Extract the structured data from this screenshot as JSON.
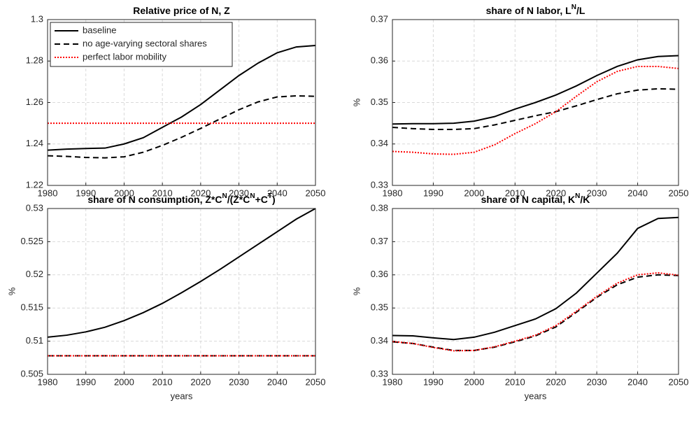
{
  "chart_data": [
    {
      "type": "line",
      "title": [
        "Relative price of N, Z"
      ],
      "x": [
        1980,
        1985,
        1990,
        1995,
        2000,
        2005,
        2010,
        2015,
        2020,
        2025,
        2030,
        2035,
        2040,
        2045,
        2050
      ],
      "xlim": [
        1980,
        2050
      ],
      "xticks": [
        1980,
        1990,
        2000,
        2010,
        2020,
        2030,
        2040,
        2050
      ],
      "ylim": [
        1.22,
        1.3
      ],
      "yticks": [
        1.22,
        1.24,
        1.26,
        1.28,
        1.3
      ],
      "grid": true,
      "legend": "upper left",
      "series": [
        {
          "name": "baseline",
          "color": "#000000",
          "dash": "solid",
          "values": [
            1.237,
            1.2375,
            1.2378,
            1.238,
            1.24,
            1.243,
            1.248,
            1.253,
            1.259,
            1.266,
            1.273,
            1.279,
            1.284,
            1.2868,
            1.2875
          ]
        },
        {
          "name": "no age-varying sectoral shares",
          "color": "#000000",
          "dash": "dashed",
          "values": [
            1.2343,
            1.234,
            1.2335,
            1.2333,
            1.2338,
            1.236,
            1.2393,
            1.2432,
            1.2475,
            1.252,
            1.2565,
            1.2603,
            1.2627,
            1.2632,
            1.263
          ]
        },
        {
          "name": "perfect labor mobility",
          "color": "#ff0000",
          "dash": "dotted",
          "values": [
            1.25,
            1.25,
            1.25,
            1.25,
            1.25,
            1.25,
            1.25,
            1.25,
            1.25,
            1.25,
            1.25,
            1.25,
            1.25,
            1.25,
            1.25
          ]
        }
      ]
    },
    {
      "type": "line",
      "title": [
        "share of N labor, L",
        {
          "sup": "N"
        },
        "/L"
      ],
      "ylabel": "%",
      "x": [
        1980,
        1985,
        1990,
        1995,
        2000,
        2005,
        2010,
        2015,
        2020,
        2025,
        2030,
        2035,
        2040,
        2045,
        2050
      ],
      "xlim": [
        1980,
        2050
      ],
      "xticks": [
        1980,
        1990,
        2000,
        2010,
        2020,
        2030,
        2040,
        2050
      ],
      "ylim": [
        0.33,
        0.37
      ],
      "yticks": [
        0.33,
        0.34,
        0.35,
        0.36,
        0.37
      ],
      "grid": true,
      "series": [
        {
          "color": "#000000",
          "dash": "solid",
          "values": [
            0.3448,
            0.3449,
            0.3449,
            0.345,
            0.3455,
            0.3466,
            0.3484,
            0.35,
            0.3518,
            0.354,
            0.3565,
            0.3587,
            0.3603,
            0.3611,
            0.3613
          ]
        },
        {
          "color": "#000000",
          "dash": "dashed",
          "values": [
            0.344,
            0.3437,
            0.3435,
            0.3435,
            0.3437,
            0.3446,
            0.3457,
            0.3468,
            0.3478,
            0.3492,
            0.3507,
            0.3521,
            0.353,
            0.3533,
            0.3532
          ]
        },
        {
          "color": "#ff0000",
          "dash": "dotted",
          "values": [
            0.3382,
            0.338,
            0.3376,
            0.3375,
            0.338,
            0.3398,
            0.3425,
            0.3449,
            0.3478,
            0.3515,
            0.355,
            0.3575,
            0.3587,
            0.3587,
            0.3582
          ]
        }
      ]
    },
    {
      "type": "line",
      "title": [
        "share of N consumption, Z*C",
        {
          "sup": "N"
        },
        "/(Z*C",
        {
          "sup": "N"
        },
        "+C",
        {
          "sup": "T"
        },
        ")"
      ],
      "ylabel": "%",
      "xlabel": "years",
      "x": [
        1980,
        1985,
        1990,
        1995,
        2000,
        2005,
        2010,
        2015,
        2020,
        2025,
        2030,
        2035,
        2040,
        2045,
        2050
      ],
      "xlim": [
        1980,
        2050
      ],
      "xticks": [
        1980,
        1990,
        2000,
        2010,
        2020,
        2030,
        2040,
        2050
      ],
      "ylim": [
        0.505,
        0.53
      ],
      "yticks": [
        0.505,
        0.51,
        0.515,
        0.52,
        0.525,
        0.53
      ],
      "grid": true,
      "series": [
        {
          "color": "#000000",
          "dash": "solid",
          "values": [
            0.5106,
            0.5109,
            0.5114,
            0.5121,
            0.5131,
            0.5143,
            0.5157,
            0.5173,
            0.519,
            0.5208,
            0.5227,
            0.5246,
            0.5265,
            0.5284,
            0.53
          ]
        },
        {
          "color": "#000000",
          "dash": "dashed",
          "values": [
            0.5078,
            0.5078,
            0.5078,
            0.5078,
            0.5078,
            0.5078,
            0.5078,
            0.5078,
            0.5078,
            0.5078,
            0.5078,
            0.5078,
            0.5078,
            0.5078,
            0.5078
          ]
        },
        {
          "color": "#ff0000",
          "dash": "dotted",
          "values": [
            0.5078,
            0.5078,
            0.5078,
            0.5078,
            0.5078,
            0.5078,
            0.5078,
            0.5078,
            0.5078,
            0.5078,
            0.5078,
            0.5078,
            0.5078,
            0.5078,
            0.5078
          ]
        }
      ]
    },
    {
      "type": "line",
      "title": [
        "share of N capital, K",
        {
          "sup": "N"
        },
        "/K"
      ],
      "ylabel": "%",
      "xlabel": "years",
      "x": [
        1980,
        1985,
        1990,
        1995,
        2000,
        2005,
        2010,
        2015,
        2020,
        2025,
        2030,
        2035,
        2040,
        2045,
        2050
      ],
      "xlim": [
        1980,
        2050
      ],
      "xticks": [
        1980,
        1990,
        2000,
        2010,
        2020,
        2030,
        2040,
        2050
      ],
      "ylim": [
        0.33,
        0.38
      ],
      "yticks": [
        0.33,
        0.34,
        0.35,
        0.36,
        0.37,
        0.38
      ],
      "grid": true,
      "series": [
        {
          "color": "#000000",
          "dash": "solid",
          "values": [
            0.3417,
            0.3416,
            0.341,
            0.3405,
            0.3412,
            0.3427,
            0.3447,
            0.3467,
            0.3498,
            0.3545,
            0.3605,
            0.3665,
            0.374,
            0.377,
            0.3773
          ]
        },
        {
          "color": "#000000",
          "dash": "dashed",
          "values": [
            0.3398,
            0.3393,
            0.3382,
            0.3372,
            0.3372,
            0.3382,
            0.3398,
            0.3416,
            0.3443,
            0.3487,
            0.3532,
            0.357,
            0.3593,
            0.36,
            0.3598
          ]
        },
        {
          "color": "#ff0000",
          "dash": "dotted",
          "values": [
            0.3399,
            0.3393,
            0.3381,
            0.3371,
            0.3372,
            0.3383,
            0.34,
            0.3418,
            0.3447,
            0.349,
            0.3535,
            0.3575,
            0.36,
            0.3606,
            0.3599
          ]
        }
      ]
    }
  ]
}
